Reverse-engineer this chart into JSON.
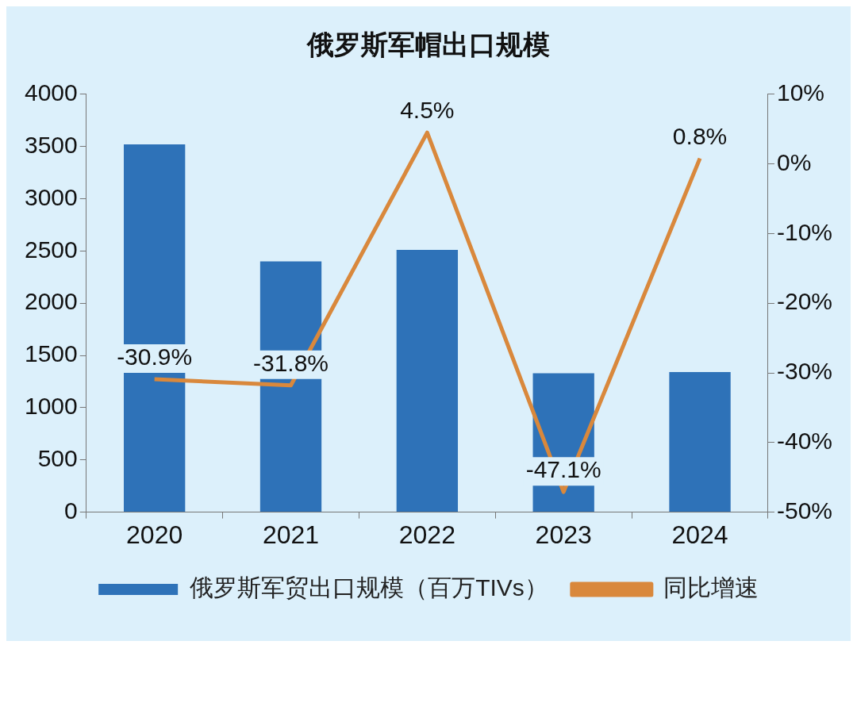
{
  "chart_data": {
    "type": "bar",
    "title": "俄罗斯军帽出口规模",
    "categories": [
      "2020",
      "2021",
      "2022",
      "2023",
      "2024"
    ],
    "series": [
      {
        "name": "俄罗斯军贸出口规模（百万TIVs）",
        "color": "#2e72b8",
        "values": [
          3520,
          2400,
          2510,
          1330,
          1340
        ]
      },
      {
        "name": "同比增速",
        "type": "line",
        "axis": "y2",
        "color": "#d9883c",
        "values": [
          -30.9,
          -31.8,
          4.5,
          -47.1,
          0.8
        ],
        "value_labels": [
          "-30.9%",
          "-31.8%",
          "4.5%",
          "-47.1%",
          "0.8%"
        ]
      }
    ],
    "ylim": [
      0,
      4000
    ],
    "yticks": [
      0,
      500,
      1000,
      1500,
      2000,
      2500,
      3000,
      3500,
      4000
    ],
    "y2lim": [
      -50,
      10
    ],
    "y2ticks": [
      {
        "value": -50,
        "label": "-50%"
      },
      {
        "value": -40,
        "label": "-40%"
      },
      {
        "value": -30,
        "label": "-30%"
      },
      {
        "value": -20,
        "label": "-20%"
      },
      {
        "value": -10,
        "label": "-10%"
      },
      {
        "value": 0,
        "label": "0%"
      },
      {
        "value": 10,
        "label": "10%"
      }
    ],
    "grid": false,
    "legend": "bottom",
    "marker": "none"
  }
}
